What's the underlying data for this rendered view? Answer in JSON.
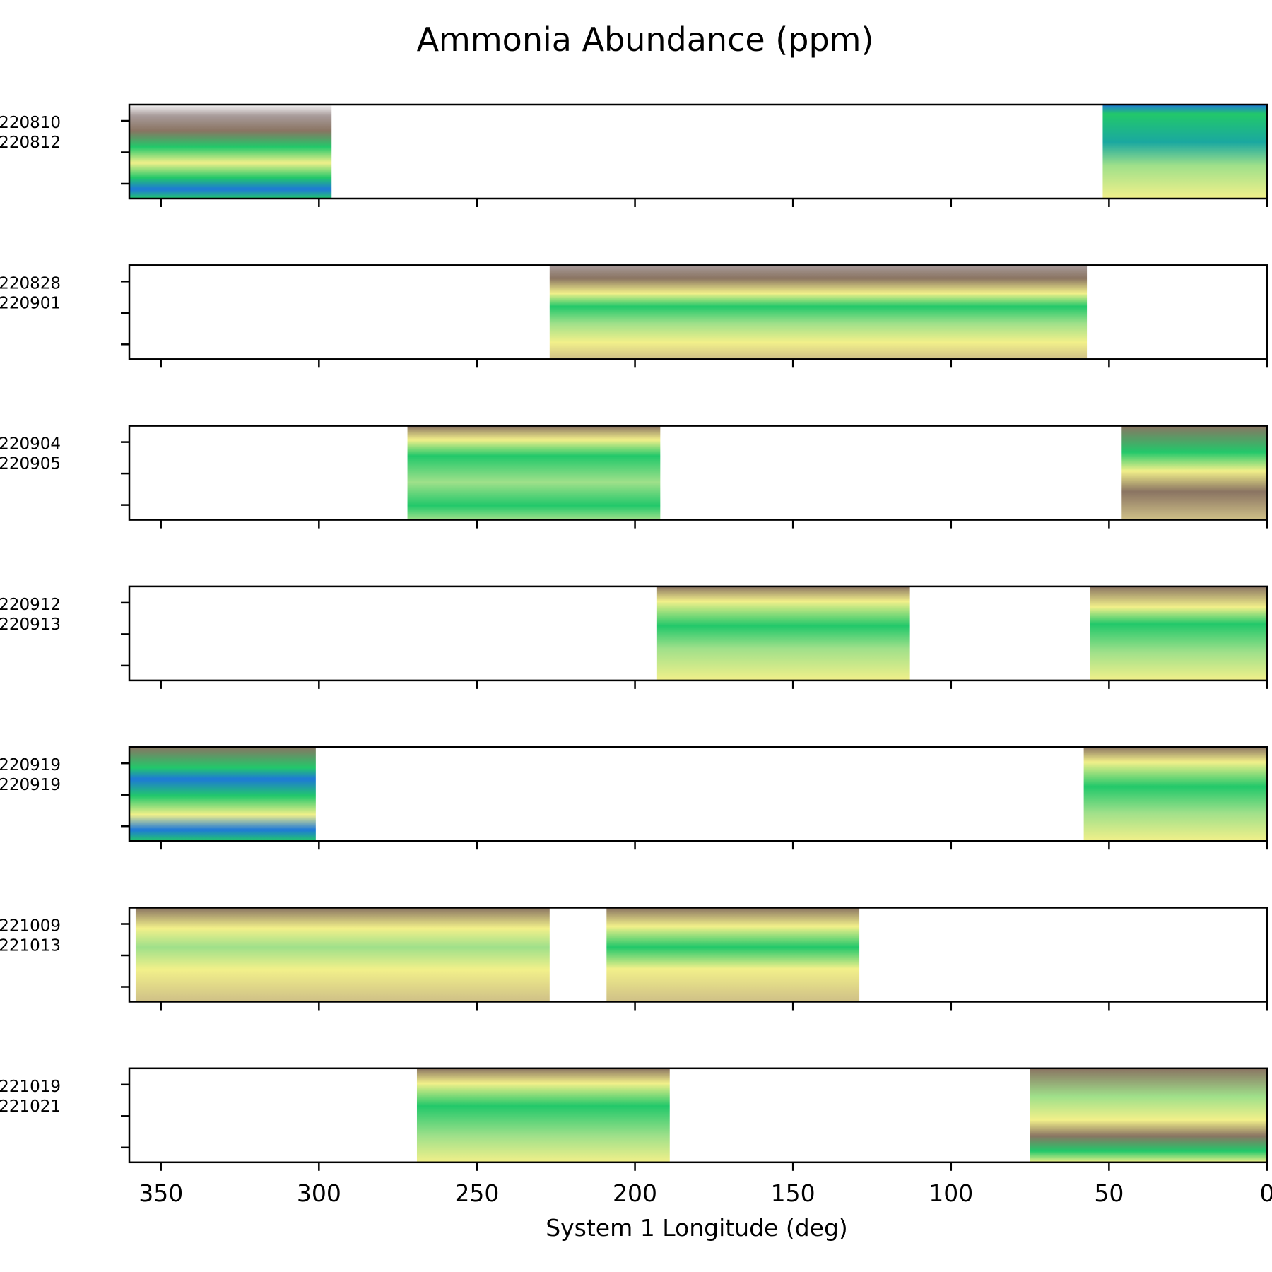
{
  "chart_data": {
    "type": "heatmap",
    "title": "Ammonia Abundance (ppm)",
    "xlabel": "System 1 Longitude (deg)",
    "xlim": [
      360,
      0
    ],
    "x_ticks": [
      350,
      300,
      250,
      200,
      150,
      100,
      50,
      0
    ],
    "x_tick_labels": [
      "350",
      "300",
      "250",
      "200",
      "150",
      "100",
      "50",
      "0"
    ],
    "y_ticks_per_panel": 3,
    "colors": {
      "white": "#f7f6f7",
      "gray": "#a89b9a",
      "brown": "#8a7462",
      "khaki": "#cfc087",
      "yellow": "#f2f08a",
      "lightgreen": "#9fe08a",
      "green": "#22c86a",
      "teal": "#1aa8a0",
      "blue": "#1e78d8",
      "navy": "#2a3aa8"
    },
    "panels": [
      {
        "labels": [
          "220810",
          "220812"
        ],
        "segments": [
          {
            "lon_start": 360,
            "lon_end": 296,
            "profile": [
              {
                "pos": 0.0,
                "color": "white"
              },
              {
                "pos": 0.12,
                "color": "gray"
              },
              {
                "pos": 0.28,
                "color": "brown"
              },
              {
                "pos": 0.45,
                "color": "green"
              },
              {
                "pos": 0.62,
                "color": "yellow"
              },
              {
                "pos": 0.78,
                "color": "green"
              },
              {
                "pos": 0.9,
                "color": "blue"
              },
              {
                "pos": 1.0,
                "color": "green"
              }
            ]
          },
          {
            "lon_start": 52,
            "lon_end": 0,
            "profile": [
              {
                "pos": 0.0,
                "color": "blue"
              },
              {
                "pos": 0.1,
                "color": "green"
              },
              {
                "pos": 0.4,
                "color": "teal"
              },
              {
                "pos": 0.65,
                "color": "lightgreen"
              },
              {
                "pos": 1.0,
                "color": "yellow"
              }
            ]
          }
        ]
      },
      {
        "labels": [
          "220828",
          "220901"
        ],
        "segments": [
          {
            "lon_start": 227,
            "lon_end": 57,
            "profile": [
              {
                "pos": 0.0,
                "color": "gray"
              },
              {
                "pos": 0.14,
                "color": "brown"
              },
              {
                "pos": 0.3,
                "color": "yellow"
              },
              {
                "pos": 0.44,
                "color": "green"
              },
              {
                "pos": 0.62,
                "color": "lightgreen"
              },
              {
                "pos": 0.82,
                "color": "yellow"
              },
              {
                "pos": 1.0,
                "color": "khaki"
              }
            ]
          }
        ]
      },
      {
        "labels": [
          "220904",
          "220905"
        ],
        "segments": [
          {
            "lon_start": 272,
            "lon_end": 192,
            "profile": [
              {
                "pos": 0.0,
                "color": "brown"
              },
              {
                "pos": 0.15,
                "color": "yellow"
              },
              {
                "pos": 0.32,
                "color": "green"
              },
              {
                "pos": 0.6,
                "color": "lightgreen"
              },
              {
                "pos": 0.85,
                "color": "green"
              },
              {
                "pos": 1.0,
                "color": "lightgreen"
              }
            ]
          },
          {
            "lon_start": 46,
            "lon_end": 0,
            "profile": [
              {
                "pos": 0.0,
                "color": "brown"
              },
              {
                "pos": 0.28,
                "color": "green"
              },
              {
                "pos": 0.48,
                "color": "yellow"
              },
              {
                "pos": 0.7,
                "color": "brown"
              },
              {
                "pos": 1.0,
                "color": "khaki"
              }
            ]
          }
        ]
      },
      {
        "labels": [
          "220912",
          "220913"
        ],
        "segments": [
          {
            "lon_start": 193,
            "lon_end": 113,
            "profile": [
              {
                "pos": 0.0,
                "color": "brown"
              },
              {
                "pos": 0.16,
                "color": "yellow"
              },
              {
                "pos": 0.42,
                "color": "green"
              },
              {
                "pos": 0.66,
                "color": "lightgreen"
              },
              {
                "pos": 1.0,
                "color": "yellow"
              }
            ]
          },
          {
            "lon_start": 56,
            "lon_end": 0,
            "profile": [
              {
                "pos": 0.0,
                "color": "brown"
              },
              {
                "pos": 0.22,
                "color": "yellow"
              },
              {
                "pos": 0.4,
                "color": "green"
              },
              {
                "pos": 0.7,
                "color": "lightgreen"
              },
              {
                "pos": 1.0,
                "color": "yellow"
              }
            ]
          }
        ]
      },
      {
        "labels": [
          "220919",
          "220919"
        ],
        "segments": [
          {
            "lon_start": 360,
            "lon_end": 301,
            "profile": [
              {
                "pos": 0.0,
                "color": "brown"
              },
              {
                "pos": 0.22,
                "color": "green"
              },
              {
                "pos": 0.34,
                "color": "blue"
              },
              {
                "pos": 0.52,
                "color": "green"
              },
              {
                "pos": 0.72,
                "color": "yellow"
              },
              {
                "pos": 0.88,
                "color": "blue"
              },
              {
                "pos": 1.0,
                "color": "green"
              }
            ]
          },
          {
            "lon_start": 58,
            "lon_end": 0,
            "profile": [
              {
                "pos": 0.0,
                "color": "brown"
              },
              {
                "pos": 0.16,
                "color": "yellow"
              },
              {
                "pos": 0.42,
                "color": "green"
              },
              {
                "pos": 0.7,
                "color": "lightgreen"
              },
              {
                "pos": 1.0,
                "color": "yellow"
              }
            ]
          }
        ]
      },
      {
        "labels": [
          "221009",
          "221013"
        ],
        "segments": [
          {
            "lon_start": 358,
            "lon_end": 227,
            "profile": [
              {
                "pos": 0.0,
                "color": "brown"
              },
              {
                "pos": 0.22,
                "color": "yellow"
              },
              {
                "pos": 0.42,
                "color": "lightgreen"
              },
              {
                "pos": 0.66,
                "color": "yellow"
              },
              {
                "pos": 1.0,
                "color": "khaki"
              }
            ]
          },
          {
            "lon_start": 209,
            "lon_end": 129,
            "profile": [
              {
                "pos": 0.0,
                "color": "brown"
              },
              {
                "pos": 0.2,
                "color": "yellow"
              },
              {
                "pos": 0.42,
                "color": "green"
              },
              {
                "pos": 0.65,
                "color": "yellow"
              },
              {
                "pos": 1.0,
                "color": "khaki"
              }
            ]
          }
        ]
      },
      {
        "labels": [
          "221019",
          "221021"
        ],
        "segments": [
          {
            "lon_start": 269,
            "lon_end": 189,
            "profile": [
              {
                "pos": 0.0,
                "color": "brown"
              },
              {
                "pos": 0.16,
                "color": "yellow"
              },
              {
                "pos": 0.4,
                "color": "green"
              },
              {
                "pos": 0.72,
                "color": "lightgreen"
              },
              {
                "pos": 1.0,
                "color": "yellow"
              }
            ]
          },
          {
            "lon_start": 75,
            "lon_end": 0,
            "profile": [
              {
                "pos": 0.0,
                "color": "brown"
              },
              {
                "pos": 0.3,
                "color": "lightgreen"
              },
              {
                "pos": 0.55,
                "color": "yellow"
              },
              {
                "pos": 0.72,
                "color": "brown"
              },
              {
                "pos": 0.88,
                "color": "green"
              },
              {
                "pos": 1.0,
                "color": "yellow"
              }
            ]
          }
        ]
      }
    ]
  }
}
